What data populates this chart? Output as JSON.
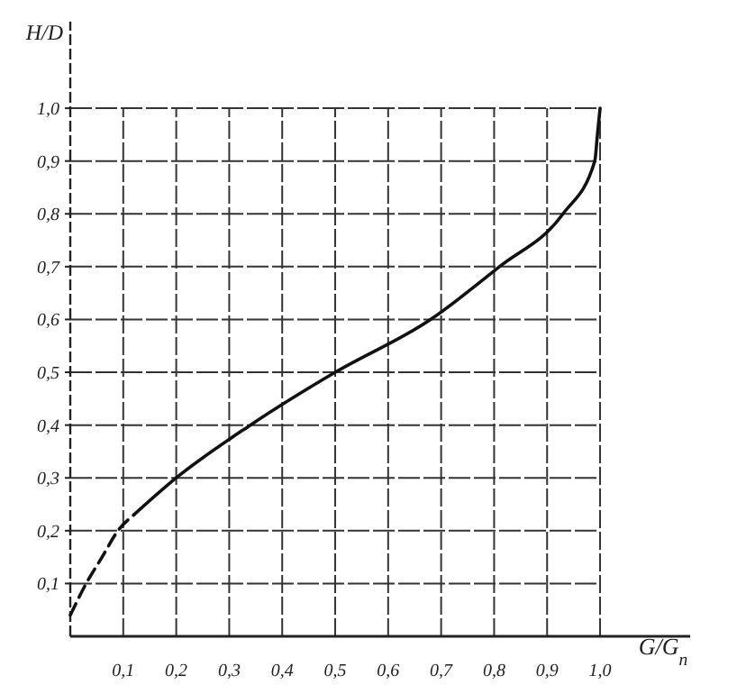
{
  "chart_data": {
    "type": "line",
    "xlabel": "G/G$_{п}$",
    "ylabel": "H/D",
    "series": [
      {
        "color": "#111111",
        "line_style": "dashed",
        "x": [
          0,
          0.03,
          0.06,
          0.09,
          0.12
        ],
        "values": [
          0.04,
          0.1,
          0.15,
          0.2,
          0.23
        ]
      },
      {
        "color": "#111111",
        "line_style": "solid",
        "x": [
          0.12,
          0.2,
          0.34,
          0.5,
          0.68,
          0.81,
          0.93,
          0.99,
          0.995,
          1.0
        ],
        "values": [
          0.23,
          0.3,
          0.4,
          0.5,
          0.6,
          0.7,
          0.8,
          0.9,
          0.95,
          1.0
        ]
      }
    ],
    "xlim": [
      0,
      1.17
    ],
    "ylim": [
      0,
      1.164
    ],
    "xticks": [
      {
        "value": 0.1,
        "label": "0,1"
      },
      {
        "value": 0.2,
        "label": "0,2"
      },
      {
        "value": 0.3,
        "label": "0,3"
      },
      {
        "value": 0.4,
        "label": "0,4"
      },
      {
        "value": 0.5,
        "label": "0,5"
      },
      {
        "value": 0.6,
        "label": "0,6"
      },
      {
        "value": 0.7,
        "label": "0,7"
      },
      {
        "value": 0.8,
        "label": "0,8"
      },
      {
        "value": 0.9,
        "label": "0,9"
      },
      {
        "value": 1.0,
        "label": "1,0"
      }
    ],
    "yticks": [
      {
        "value": 0.1,
        "label": "0,1"
      },
      {
        "value": 0.2,
        "label": "0,2"
      },
      {
        "value": 0.3,
        "label": "0,3"
      },
      {
        "value": 0.4,
        "label": "0,4"
      },
      {
        "value": 0.5,
        "label": "0,5"
      },
      {
        "value": 0.6,
        "label": "0,6"
      },
      {
        "value": 0.7,
        "label": "0,7"
      },
      {
        "value": 0.8,
        "label": "0,8"
      },
      {
        "value": 0.9,
        "label": "0,9"
      },
      {
        "value": 1.0,
        "label": "1,0"
      }
    ],
    "grid": true,
    "marker": "none"
  }
}
